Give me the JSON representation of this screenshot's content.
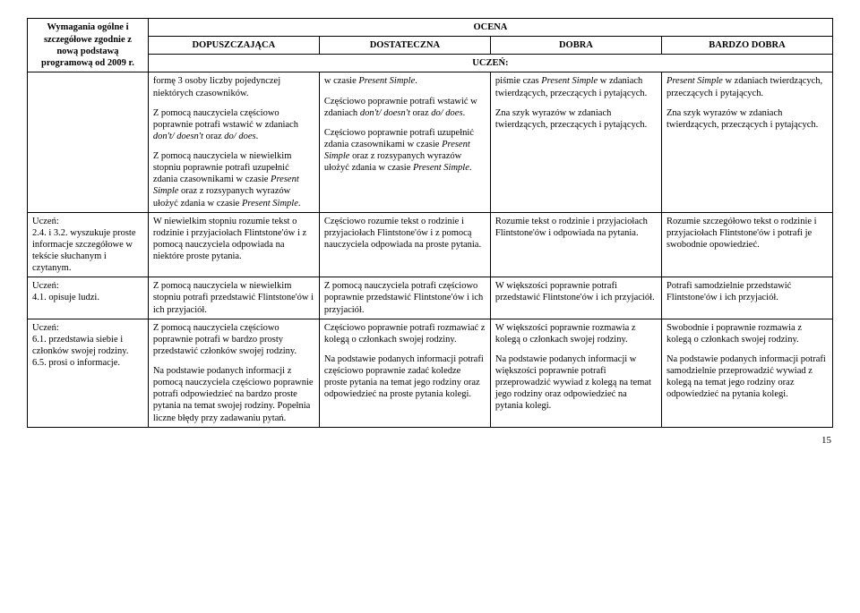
{
  "header": {
    "left": "Wymagania ogólne i szczegółowe zgodnie z nową podstawą programową od 2009 r.",
    "top": "OCENA",
    "grades": [
      "DOPUSZCZAJĄCA",
      "DOSTATECZNA",
      "DOBRA",
      "BARDZO DOBRA"
    ],
    "uczen": "UCZEŃ:"
  },
  "rows": [
    {
      "left": "",
      "c1": [
        "formę 3 osoby liczby pojedynczej niektórych czasowników.",
        "Z pomocą nauczyciela częściowo poprawnie potrafi wstawić w zdaniach <i>don't/ doesn't</i> oraz <i>do/ does</i>.",
        "Z pomocą nauczyciela w niewielkim stopniu poprawnie potrafi uzupełnić zdania czasownikami w czasie <i>Present Simple</i> oraz z rozsypanych wyrazów ułożyć zdania w czasie <i>Present Simple</i>."
      ],
      "c2": [
        "w czasie <i>Present Simple</i>.",
        "Częściowo poprawnie potrafi wstawić w zdaniach <i>don't/ doesn't</i> oraz <i>do/ does</i>.",
        "Częściowo poprawnie potrafi uzupełnić zdania czasownikami w czasie <i>Present Simple</i> oraz z rozsypanych wyrazów ułożyć zdania w czasie <i>Present Simple</i>."
      ],
      "c3": [
        "piśmie czas <i>Present Simple</i> w zdaniach twierdzących, przeczących i pytających.",
        "Zna szyk wyrazów w zdaniach twierdzących, przeczących i pytających."
      ],
      "c4": [
        "<i>Present Simple</i> w zdaniach twierdzących, przeczących i pytających.",
        "Zna szyk wyrazów w zdaniach twierdzących, przeczących i pytających."
      ]
    },
    {
      "left": "Uczeń:<br>2.4. i 3.2. wyszukuje proste informacje szczegółowe w tekście słuchanym i czytanym.",
      "c1": [
        "W niewielkim stopniu rozumie tekst o rodzinie i przyjaciołach Flintstone'ów i z pomocą nauczyciela odpowiada na niektóre proste pytania."
      ],
      "c2": [
        "Częściowo rozumie tekst o rodzinie i przyjaciołach Flintstone'ów i z pomocą nauczyciela odpowiada na proste pytania."
      ],
      "c3": [
        "Rozumie tekst o rodzinie i przyjaciołach Flintstone'ów i odpowiada na pytania."
      ],
      "c4": [
        "Rozumie szczegółowo tekst o rodzinie i przyjaciołach Flintstone'ów i potrafi je swobodnie opowiedzieć."
      ]
    },
    {
      "left": "Uczeń:<br>4.1. opisuje ludzi.",
      "c1": [
        "Z pomocą nauczyciela w niewielkim stopniu potrafi przedstawić Flintstone'ów i ich przyjaciół."
      ],
      "c2": [
        "Z pomocą nauczyciela potrafi częściowo poprawnie przedstawić Flintstone'ów i ich przyjaciół."
      ],
      "c3": [
        "W większości poprawnie potrafi przedstawić Flintstone'ów i ich przyjaciół."
      ],
      "c4": [
        "Potrafi samodzielnie przedstawić Flintstone'ów i ich przyjaciół."
      ]
    },
    {
      "left": "Uczeń:<br>6.1. przedstawia siebie i członków swojej rodziny.<br>6.5. prosi o informacje.",
      "c1": [
        "Z pomocą nauczyciela częściowo poprawnie potrafi w bardzo prosty przedstawić członków swojej rodziny.",
        "Na podstawie podanych informacji z pomocą nauczyciela częściowo poprawnie potrafi odpowiedzieć na bardzo proste pytania na temat swojej rodziny. Popełnia liczne błędy przy zadawaniu pytań."
      ],
      "c2": [
        "Częściowo poprawnie potrafi rozmawiać z kolegą o członkach swojej rodziny.",
        "Na podstawie podanych informacji potrafi częściowo poprawnie zadać koledze proste pytania na temat jego rodziny oraz odpowiedzieć na proste pytania kolegi."
      ],
      "c3": [
        "W większości poprawnie rozmawia z kolegą o członkach swojej rodziny.",
        "Na podstawie podanych informacji w większości poprawnie potrafi przeprowadzić wywiad z kolegą na temat jego rodziny oraz odpowiedzieć na pytania kolegi."
      ],
      "c4": [
        "Swobodnie i poprawnie rozmawia z kolegą o członkach swojej rodziny.",
        "Na podstawie podanych informacji potrafi samodzielnie przeprowadzić wywiad z kolegą na temat jego rodziny oraz odpowiedzieć na pytania kolegi."
      ]
    }
  ],
  "page": "15"
}
